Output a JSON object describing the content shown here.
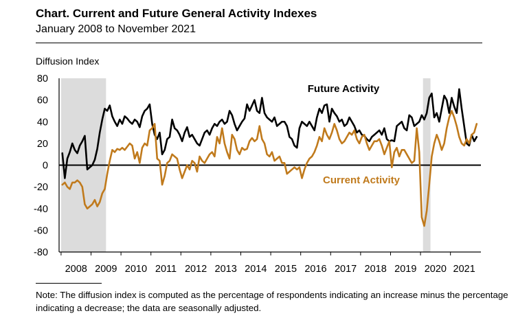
{
  "title": "Chart. Current and Future General Activity Indexes",
  "subtitle": "January 2008 to November 2021",
  "note": "Note: The diffusion index is computed as the percentage of respondents indicating an increase minus the percentage indicating a decrease; the data are seasonally adjusted.",
  "colors": {
    "future": "#000000",
    "current": "#C07A1C",
    "recession": "#DCDCDC",
    "current_label": "#C07A1C"
  },
  "chart_data": {
    "type": "line",
    "ylabel": "Diffusion Index",
    "ylim": [
      -80,
      80
    ],
    "yticks": [
      80,
      60,
      40,
      20,
      0,
      -20,
      -40,
      -60,
      -80
    ],
    "x_start": "2008-01",
    "x_end": "2021-11",
    "xtick_labels": [
      "2008",
      "2009",
      "2010",
      "2011",
      "2012",
      "2013",
      "2014",
      "2015",
      "2016",
      "2017",
      "2018",
      "2019",
      "2020",
      "2021"
    ],
    "recessions": [
      [
        "2008-01",
        "2009-06"
      ],
      [
        "2020-02",
        "2020-04"
      ]
    ],
    "zero_line": true,
    "series": [
      {
        "name": "Future Activity",
        "color": "#000000",
        "annotation": "Future Activity",
        "values": [
          11,
          -12,
          6,
          12,
          20,
          14,
          11,
          18,
          22,
          27,
          -4,
          -2,
          0,
          5,
          15,
          30,
          42,
          52,
          50,
          55,
          45,
          40,
          36,
          42,
          38,
          45,
          43,
          40,
          38,
          42,
          40,
          35,
          45,
          50,
          52,
          56,
          38,
          28,
          24,
          30,
          10,
          14,
          24,
          26,
          42,
          34,
          32,
          28,
          22,
          30,
          35,
          26,
          28,
          24,
          20,
          18,
          24,
          30,
          32,
          28,
          34,
          38,
          36,
          40,
          42,
          38,
          40,
          50,
          46,
          38,
          32,
          36,
          40,
          43,
          56,
          50,
          55,
          60,
          50,
          48,
          62,
          48,
          44,
          42,
          40,
          44,
          36,
          38,
          40,
          40,
          36,
          26,
          24,
          18,
          16,
          34,
          40,
          38,
          36,
          40,
          36,
          32,
          44,
          52,
          48,
          55,
          56,
          40,
          52,
          48,
          45,
          40,
          42,
          36,
          38,
          44,
          40,
          36,
          30,
          32,
          28,
          27,
          24,
          22,
          26,
          28,
          30,
          32,
          28,
          34,
          24,
          22,
          23,
          22,
          36,
          38,
          40,
          34,
          32,
          46,
          44,
          36,
          38,
          40,
          46,
          42,
          48,
          62,
          66,
          44,
          48,
          40,
          52,
          64,
          60,
          48,
          62,
          54,
          48,
          70,
          52,
          36,
          20,
          18,
          28,
          22,
          26
        ]
      },
      {
        "name": "Current Activity",
        "color": "#C07A1C",
        "annotation": "Current Activity",
        "values": [
          -18,
          -16,
          -20,
          -22,
          -16,
          -16,
          -14,
          -16,
          -20,
          -36,
          -40,
          -38,
          -36,
          -32,
          -38,
          -34,
          -26,
          -22,
          -8,
          4,
          14,
          12,
          15,
          14,
          16,
          14,
          17,
          20,
          18,
          6,
          12,
          2,
          16,
          20,
          18,
          32,
          34,
          38,
          6,
          4,
          -18,
          -10,
          2,
          4,
          10,
          8,
          6,
          -4,
          -12,
          -6,
          0,
          -4,
          4,
          2,
          -6,
          8,
          4,
          2,
          6,
          10,
          12,
          8,
          26,
          20,
          34,
          20,
          12,
          6,
          28,
          24,
          14,
          10,
          16,
          14,
          15,
          22,
          25,
          22,
          24,
          36,
          24,
          20,
          10,
          8,
          12,
          4,
          6,
          8,
          2,
          2,
          -8,
          -6,
          -4,
          -2,
          -4,
          -2,
          -12,
          -4,
          2,
          6,
          8,
          12,
          18,
          26,
          22,
          34,
          28,
          24,
          30,
          38,
          32,
          24,
          20,
          22,
          26,
          30,
          28,
          32,
          24,
          20,
          26,
          28,
          20,
          14,
          18,
          22,
          22,
          24,
          18,
          10,
          16,
          22,
          -2,
          12,
          16,
          8,
          14,
          14,
          10,
          6,
          2,
          4,
          34,
          12,
          -48,
          -56,
          -42,
          -18,
          8,
          20,
          28,
          22,
          14,
          20,
          34,
          44,
          50,
          44,
          36,
          26,
          20,
          18,
          24,
          20,
          28,
          30,
          38
        ]
      }
    ]
  }
}
